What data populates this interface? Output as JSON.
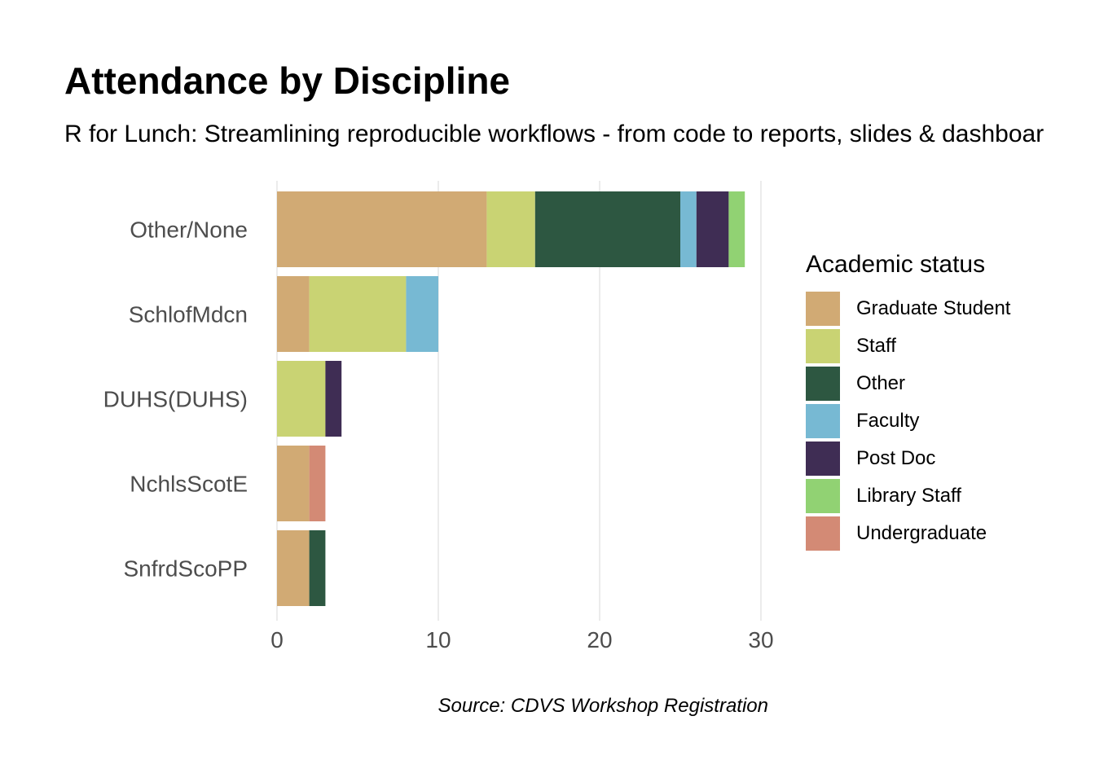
{
  "title": "Attendance by Discipline",
  "subtitle": "R for Lunch: Streamlining reproducible workflows - from code to reports, slides & dashboar",
  "caption": "Source: CDVS Workshop Registration",
  "legend": {
    "title": "Academic status",
    "placement": "right",
    "items": [
      {
        "label": "Graduate Student",
        "color": "#D1AA74"
      },
      {
        "label": "Staff",
        "color": "#C9D373"
      },
      {
        "label": "Other",
        "color": "#2D5741"
      },
      {
        "label": "Faculty",
        "color": "#77B9D3"
      },
      {
        "label": "Post Doc",
        "color": "#3F2D54"
      },
      {
        "label": "Library Staff",
        "color": "#91D273"
      },
      {
        "label": "Undergraduate",
        "color": "#D38A75"
      }
    ]
  },
  "chart_data": {
    "type": "bar",
    "orientation": "horizontal",
    "stacked": true,
    "categories": [
      "Other/None",
      "SchlofMdcn",
      "DUHS(DUHS)",
      "NchlsScotE",
      "SnfrdScoPP"
    ],
    "series": [
      {
        "name": "Graduate Student",
        "color": "#D1AA74",
        "values": [
          13,
          2,
          0,
          2,
          2
        ]
      },
      {
        "name": "Staff",
        "color": "#C9D373",
        "values": [
          3,
          6,
          3,
          0,
          0
        ]
      },
      {
        "name": "Other",
        "color": "#2D5741",
        "values": [
          9,
          0,
          0,
          0,
          1
        ]
      },
      {
        "name": "Faculty",
        "color": "#77B9D3",
        "values": [
          1,
          2,
          0,
          0,
          0
        ]
      },
      {
        "name": "Post Doc",
        "color": "#3F2D54",
        "values": [
          2,
          0,
          1,
          0,
          0
        ]
      },
      {
        "name": "Library Staff",
        "color": "#91D273",
        "values": [
          1,
          0,
          0,
          0,
          0
        ]
      },
      {
        "name": "Undergraduate",
        "color": "#D38A75",
        "values": [
          0,
          0,
          0,
          1,
          0
        ]
      }
    ],
    "x_ticks": [
      "0",
      "10",
      "20",
      "30"
    ],
    "xlim": [
      0,
      30
    ],
    "xlabel": "",
    "ylabel": "",
    "grid": "vertical major"
  }
}
